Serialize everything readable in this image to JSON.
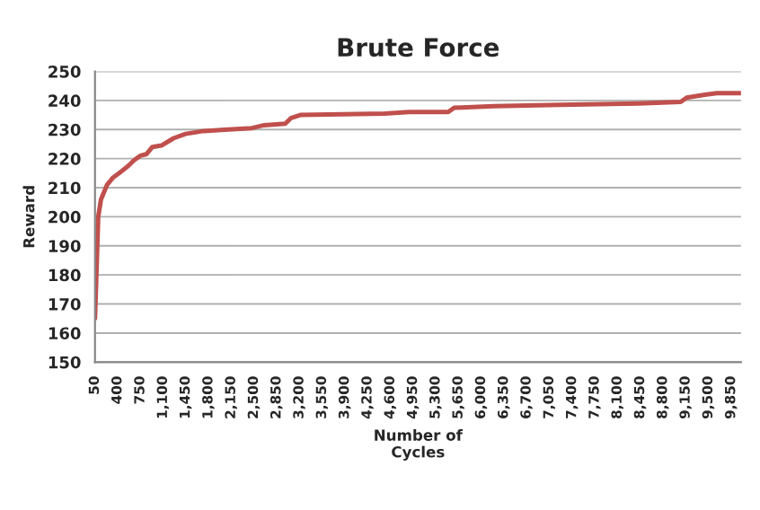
{
  "chart_data": {
    "type": "line",
    "title": "Brute Force",
    "xlabel": "Number of\nCycles",
    "ylabel": "Reward",
    "x": [
      50,
      100,
      143,
      236,
      329,
      422,
      562,
      655,
      748,
      840,
      934,
      1073,
      1259,
      1445,
      1724,
      2096,
      2468,
      2654,
      2980,
      3073,
      3212,
      4514,
      4886,
      5490,
      5583,
      6188,
      7211,
      8420,
      9071,
      9164,
      9443,
      9629,
      10000
    ],
    "series": [
      {
        "color": "#c0504d",
        "values": [
          165,
          200,
          206,
          211,
          213.5,
          215,
          217.5,
          219.5,
          221,
          221.5,
          224,
          224.5,
          227,
          228.5,
          229.5,
          230,
          230.5,
          231.5,
          232,
          234,
          235,
          235.5,
          236,
          236,
          237.5,
          238,
          238.5,
          239,
          239.5,
          241,
          242,
          242.5,
          242.5
        ]
      }
    ],
    "xlim": [
      50,
      10000
    ],
    "xticks": [
      {
        "value": 50,
        "label": "50"
      },
      {
        "value": 400,
        "label": "400"
      },
      {
        "value": 750,
        "label": "750"
      },
      {
        "value": 1100,
        "label": "1,100"
      },
      {
        "value": 1450,
        "label": "1,450"
      },
      {
        "value": 1800,
        "label": "1,800"
      },
      {
        "value": 2150,
        "label": "2,150"
      },
      {
        "value": 2500,
        "label": "2,500"
      },
      {
        "value": 2850,
        "label": "2,850"
      },
      {
        "value": 3200,
        "label": "3,200"
      },
      {
        "value": 3550,
        "label": "3,550"
      },
      {
        "value": 3900,
        "label": "3,900"
      },
      {
        "value": 4250,
        "label": "4,250"
      },
      {
        "value": 4600,
        "label": "4,600"
      },
      {
        "value": 4950,
        "label": "4,950"
      },
      {
        "value": 5300,
        "label": "5,300"
      },
      {
        "value": 5650,
        "label": "5,650"
      },
      {
        "value": 6000,
        "label": "6,000"
      },
      {
        "value": 6350,
        "label": "6,350"
      },
      {
        "value": 6700,
        "label": "6,700"
      },
      {
        "value": 7050,
        "label": "7,050"
      },
      {
        "value": 7400,
        "label": "7,400"
      },
      {
        "value": 7750,
        "label": "7,750"
      },
      {
        "value": 8100,
        "label": "8,100"
      },
      {
        "value": 8450,
        "label": "8,450"
      },
      {
        "value": 8800,
        "label": "8,800"
      },
      {
        "value": 9150,
        "label": "9,150"
      },
      {
        "value": 9500,
        "label": "9,500"
      },
      {
        "value": 9850,
        "label": "9,850"
      }
    ],
    "ylim": [
      150,
      250
    ],
    "yticks": [
      150,
      160,
      170,
      180,
      190,
      200,
      210,
      220,
      230,
      240,
      250
    ],
    "grid": "y",
    "legend": false
  }
}
